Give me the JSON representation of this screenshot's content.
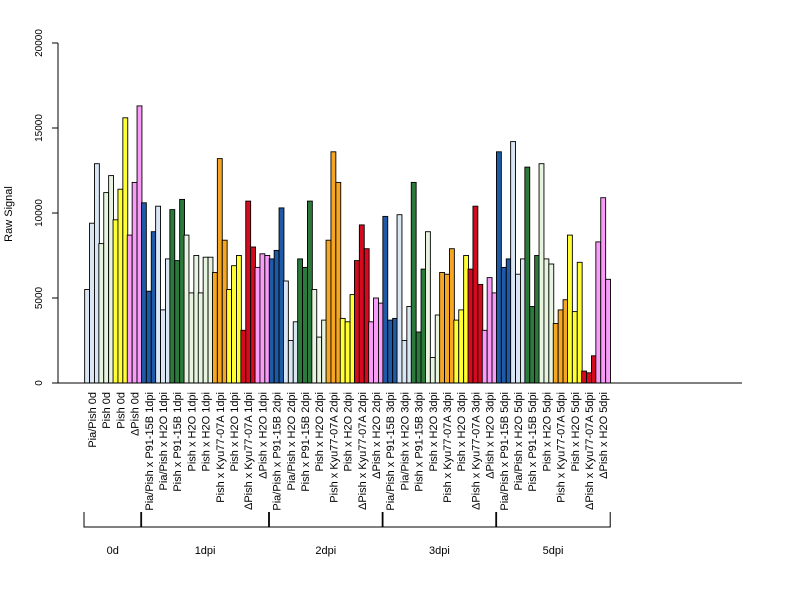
{
  "chart_data": {
    "type": "bar",
    "ylabel": "Raw Signal",
    "ylim": [
      0,
      20000
    ],
    "yticks": [
      0,
      5000,
      10000,
      15000,
      20000
    ],
    "grid": false,
    "legend": "none",
    "categories": [
      "Pia/Pish 0d",
      "Pish 0d",
      "Pish 0d",
      "ΔPish 0d",
      "Pia/Pish x P91-15B 1dpi",
      "Pia/Pish x H2O 1dpi",
      "Pish x P91-15B 1dpi",
      "Pish x H2O 1dpi",
      "Pish x H2O 1dpi",
      "Pish x Kyu77-07A 1dpi",
      "Pish x H2O 1dpi",
      "ΔPish x Kyu77-07A 1dpi",
      "ΔPish x H2O 1dpi",
      "Pia/Pish x P91-15B 2dpi",
      "Pia/Pish x H2O 2dpi",
      "Pish x P91-15B 2dpi",
      "Pish x H2O 2dpi",
      "Pish x Kyu77-07A 2dpi",
      "Pish x H2O 2dpi",
      "ΔPish x Kyu77-07A 2dpi",
      "ΔPish x H2O 2dpi",
      "Pia/Pish x P91-15B 3dpi",
      "Pia/Pish x H2O 3dpi",
      "Pish x P91-15B 3dpi",
      "Pish x H2O 3dpi",
      "Pish x Kyu77-07A 3dpi",
      "Pish x H2O 3dpi",
      "ΔPish x Kyu77-07A 3dpi",
      "ΔPish x H2O 3dpi",
      "Pia/Pish x P91-15B 5dpi",
      "Pia/Pish x H2O 5dpi",
      "Pish x P91-15B 5dpi",
      "Pish x H2O 5dpi",
      "Pish x Kyu77-07A 5dpi",
      "Pish x H2O 5dpi",
      "ΔPish x Kyu77-07A 5dpi",
      "ΔPish x H2O 5dpi"
    ],
    "colors": [
      "#dae6f4",
      "#e6f4e0",
      "#ffff33",
      "#f89cf8",
      "#1f5aa6",
      "#dae6f4",
      "#2b7a3c",
      "#e6f4e0",
      "#ffff33",
      "#f5a623",
      "#ffff33",
      "#d40b1f",
      "#f89cf8"
    ],
    "category_colors": [
      "#dae6f4",
      "#e6f4e0",
      "#ffff33",
      "#f89cf8",
      "#1f5aa6",
      "#dae6f4",
      "#2b7a3c",
      "#e6f4e0",
      "#e6f4e0",
      "#f5a623",
      "#ffff33",
      "#d40b1f",
      "#f89cf8",
      "#1f5aa6",
      "#dae6f4",
      "#2b7a3c",
      "#e6f4e0",
      "#f5a623",
      "#ffff33",
      "#d40b1f",
      "#f89cf8",
      "#1f5aa6",
      "#dae6f4",
      "#2b7a3c",
      "#e6f4e0",
      "#f5a623",
      "#ffff33",
      "#d40b1f",
      "#f89cf8",
      "#1f5aa6",
      "#dae6f4",
      "#2b7a3c",
      "#e6f4e0",
      "#f5a623",
      "#ffff33",
      "#d40b1f",
      "#f89cf8"
    ],
    "values": [
      [
        5500,
        9400,
        12900
      ],
      [
        8200,
        11200,
        12200
      ],
      [
        9600,
        11400,
        15600
      ],
      [
        8700,
        11800,
        16300
      ],
      [
        10600,
        5400,
        8900
      ],
      [
        10400,
        4300,
        7300
      ],
      [
        10200,
        7200,
        10800
      ],
      [
        8700,
        5300,
        7500
      ],
      [
        5300,
        7400,
        7400
      ],
      [
        6500,
        13200,
        8400
      ],
      [
        5500,
        6900,
        7500
      ],
      [
        3100,
        10700,
        8000
      ],
      [
        6800,
        7600,
        7500
      ],
      [
        7300,
        7800,
        10300
      ],
      [
        6000,
        2500,
        3600
      ],
      [
        7300,
        6800,
        10700
      ],
      [
        5500,
        2700,
        3700
      ],
      [
        8400,
        13600,
        11800
      ],
      [
        3800,
        3600,
        5200
      ],
      [
        7200,
        9300,
        7900
      ],
      [
        3600,
        5000,
        4700
      ],
      [
        9800,
        3700,
        3800
      ],
      [
        9900,
        2500,
        4500
      ],
      [
        11800,
        3000,
        6700
      ],
      [
        8900,
        1500,
        4000
      ],
      [
        6500,
        6400,
        7900
      ],
      [
        3700,
        4300,
        7500
      ],
      [
        6700,
        10400,
        5800
      ],
      [
        3100,
        6200,
        5300
      ],
      [
        13600,
        6800,
        7300
      ],
      [
        14200,
        6400,
        7300
      ],
      [
        12700,
        4500,
        7500
      ],
      [
        12900,
        7300,
        7000
      ],
      [
        3500,
        4300,
        4900
      ],
      [
        8700,
        4200,
        7100
      ],
      [
        700,
        600,
        1600
      ],
      [
        8300,
        10900,
        6100
      ]
    ],
    "groups": [
      {
        "label": "0d",
        "start": 0,
        "end": 3
      },
      {
        "label": "1dpi",
        "start": 4,
        "end": 12
      },
      {
        "label": "2dpi",
        "start": 13,
        "end": 20
      },
      {
        "label": "3dpi",
        "start": 21,
        "end": 28
      },
      {
        "label": "5dpi",
        "start": 29,
        "end": 36
      }
    ]
  }
}
